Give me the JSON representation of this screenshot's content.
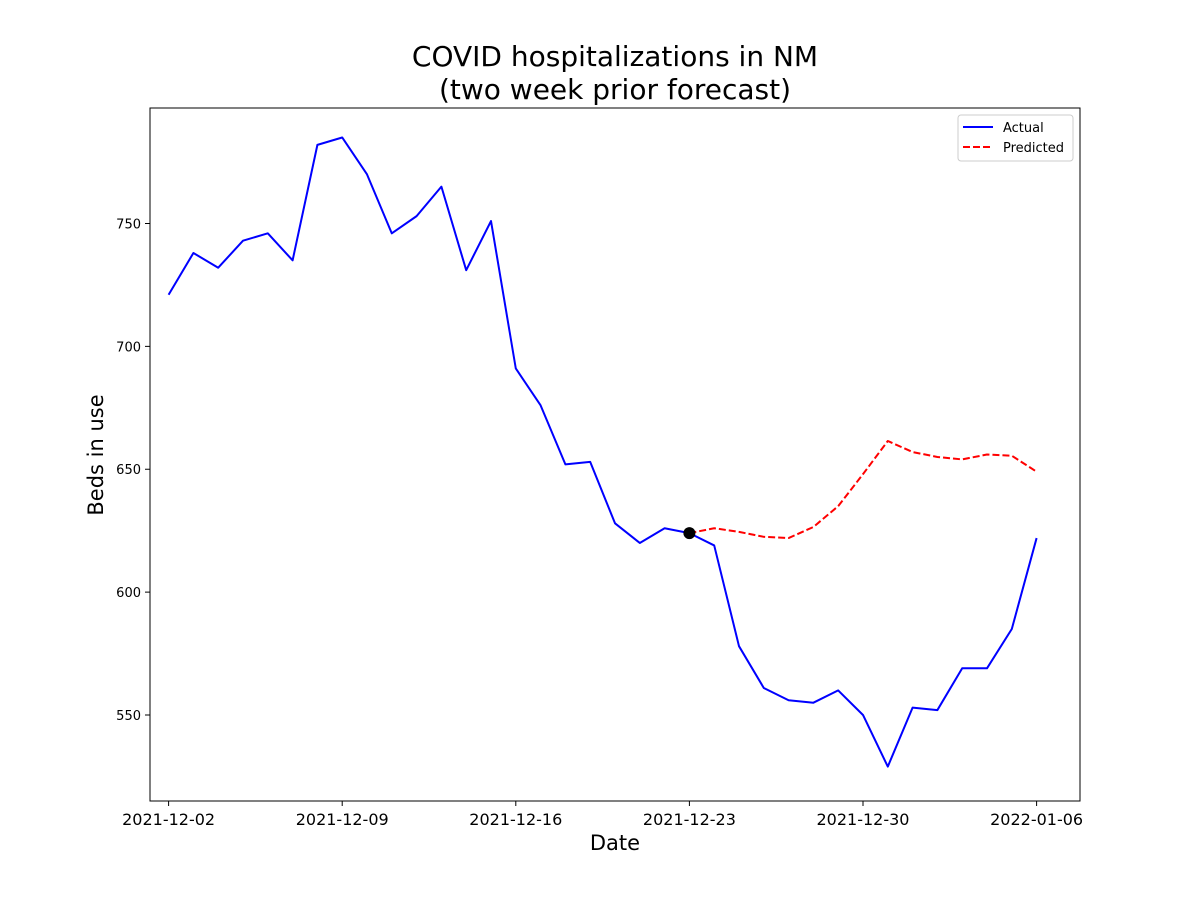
{
  "chart_data": {
    "type": "line",
    "title": "COVID hospitalizations in NM\n(two week prior forecast)",
    "title_lines": [
      "COVID hospitalizations in NM",
      "(two week prior forecast)"
    ],
    "xlabel": "Date",
    "ylabel": "Beds in use",
    "x_ticks": [
      "2021-12-02",
      "2021-12-09",
      "2021-12-16",
      "2021-12-23",
      "2021-12-30",
      "2022-01-06"
    ],
    "y_ticks": [
      550,
      600,
      650,
      700,
      750
    ],
    "ylim": [
      515,
      797
    ],
    "xlim": [
      "2021-12-01T06:00",
      "2022-01-07T18:00"
    ],
    "grid": false,
    "legend_position": "top-right",
    "forecast_origin": {
      "x": "2021-12-23",
      "y": 624
    },
    "series": [
      {
        "name": "Actual",
        "color": "#0000ff",
        "style": "solid",
        "x": [
          "2021-12-02",
          "2021-12-03",
          "2021-12-04",
          "2021-12-05",
          "2021-12-06",
          "2021-12-07",
          "2021-12-08",
          "2021-12-09",
          "2021-12-10",
          "2021-12-11",
          "2021-12-12",
          "2021-12-13",
          "2021-12-14",
          "2021-12-15",
          "2021-12-16",
          "2021-12-17",
          "2021-12-18",
          "2021-12-19",
          "2021-12-20",
          "2021-12-21",
          "2021-12-22",
          "2021-12-23",
          "2021-12-24",
          "2021-12-25",
          "2021-12-26",
          "2021-12-27",
          "2021-12-28",
          "2021-12-29",
          "2021-12-30",
          "2021-12-31",
          "2022-01-01",
          "2022-01-02",
          "2022-01-03",
          "2022-01-04",
          "2022-01-05",
          "2022-01-06"
        ],
        "values": [
          721,
          738,
          732,
          743,
          746,
          735,
          782,
          785,
          770,
          746,
          753,
          765,
          731,
          751,
          691,
          676,
          652,
          653,
          628,
          620,
          626,
          624,
          619,
          578,
          561,
          556,
          555,
          560,
          550,
          529,
          553,
          552,
          569,
          569,
          585,
          622
        ]
      },
      {
        "name": "Predicted",
        "color": "#ff0000",
        "style": "dashed",
        "x": [
          "2021-12-23",
          "2021-12-24",
          "2021-12-25",
          "2021-12-26",
          "2021-12-27",
          "2021-12-28",
          "2021-12-29",
          "2021-12-30",
          "2021-12-31",
          "2022-01-01",
          "2022-01-02",
          "2022-01-03",
          "2022-01-04",
          "2022-01-05",
          "2022-01-06"
        ],
        "values": [
          624,
          626,
          624.5,
          622.5,
          622,
          626.5,
          635,
          648,
          661.5,
          657,
          655,
          654,
          656,
          655.5,
          649
        ]
      }
    ]
  }
}
